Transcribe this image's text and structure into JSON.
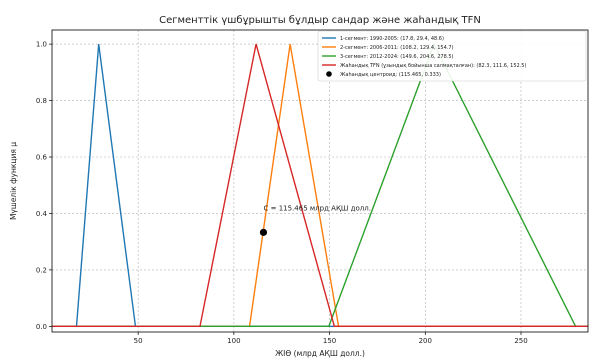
{
  "chart_data": {
    "type": "line",
    "title": "Сегменттік үшбұрышты бұлдыр сандар және жаһандық TFN",
    "xlabel": "ЖІӨ (млрд АҚШ долл.)",
    "ylabel": "Мүшелік функция μ",
    "xlim": [
      5,
      285
    ],
    "ylim": [
      -0.02,
      1.05
    ],
    "xticks": [
      50,
      100,
      150,
      200,
      250
    ],
    "yticks": [
      0.0,
      0.2,
      0.4,
      0.6,
      0.8,
      1.0
    ],
    "xtick_labels": [
      "50",
      "100",
      "150",
      "200",
      "250"
    ],
    "ytick_labels": [
      "0.0",
      "0.2",
      "0.4",
      "0.6",
      "0.8",
      "1.0"
    ],
    "grid": true,
    "legend_position": "top-right",
    "series": [
      {
        "name": "1-сегмент: 1990-2005: (17.8, 29.4, 48.6)",
        "color": "#1f77b4",
        "points": [
          [
            5,
            0
          ],
          [
            17.8,
            0
          ],
          [
            29.4,
            1
          ],
          [
            48.6,
            0
          ],
          [
            285,
            0
          ]
        ]
      },
      {
        "name": "2-сегмент: 2006-2011: (108.2, 129.4, 154.7)",
        "color": "#ff7f0e",
        "points": [
          [
            5,
            0
          ],
          [
            108.2,
            0
          ],
          [
            129.4,
            1
          ],
          [
            154.7,
            0
          ],
          [
            285,
            0
          ]
        ]
      },
      {
        "name": "3-сегмент: 2012-2024: (149.6, 204.6, 278.5)",
        "color": "#2ca02c",
        "points": [
          [
            5,
            0
          ],
          [
            149.6,
            0
          ],
          [
            204.6,
            1
          ],
          [
            278.5,
            0
          ],
          [
            285,
            0
          ]
        ]
      },
      {
        "name": "Жаһандық TFN (ұзындық бойынша салмақталған): (82.3, 111.6, 152.5)",
        "color": "#d62728",
        "points": [
          [
            5,
            0
          ],
          [
            82.3,
            0
          ],
          [
            111.6,
            1
          ],
          [
            152.5,
            0
          ],
          [
            285,
            0
          ]
        ]
      }
    ],
    "centroid": {
      "label": "Жаһандық центроид: (115.465, 0.333)",
      "x": 115.465,
      "y": 0.333,
      "color": "#000000"
    },
    "annotation": {
      "text": "C = 115.465 млрд АҚШ долл.",
      "x": 115.5,
      "y": 0.41
    }
  }
}
